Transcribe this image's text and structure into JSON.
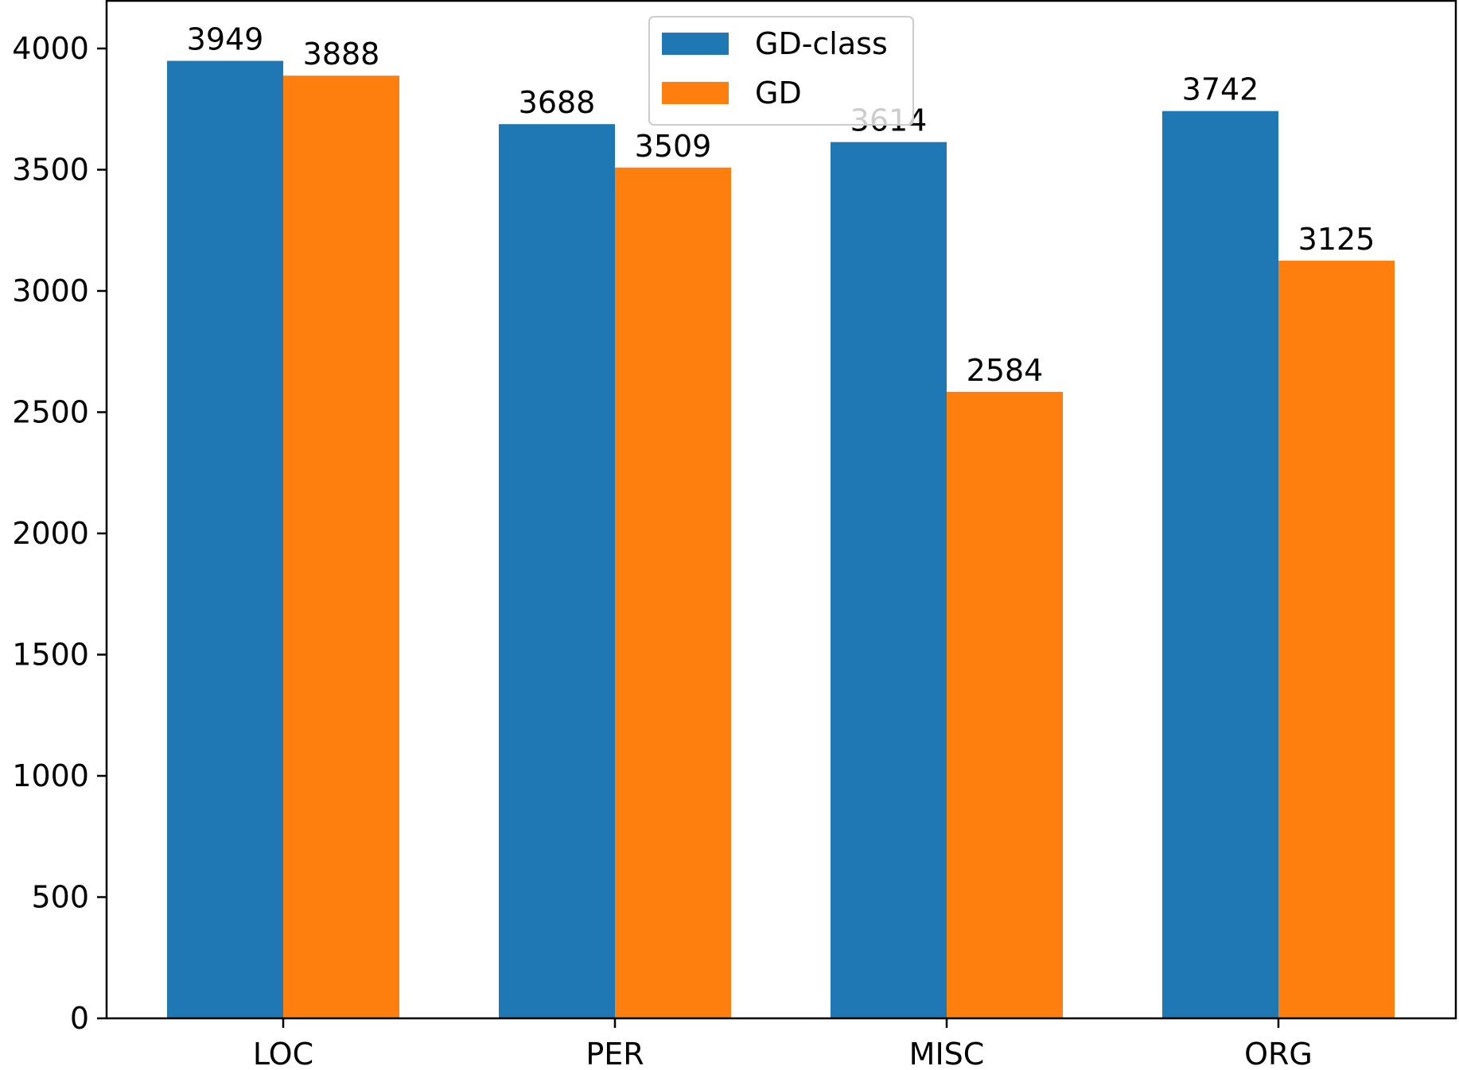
{
  "chart_data": {
    "type": "bar",
    "title": "",
    "xlabel": "",
    "ylabel": "",
    "categories": [
      "LOC",
      "PER",
      "MISC",
      "ORG"
    ],
    "series": [
      {
        "name": "GD-class",
        "values": [
          3949,
          3688,
          3614,
          3742
        ],
        "color": "#1f77b4"
      },
      {
        "name": "GD",
        "values": [
          3888,
          3509,
          2584,
          3125
        ],
        "color": "#ff7f0e"
      }
    ],
    "ylim": [
      0,
      4200
    ],
    "yticks": [
      0,
      500,
      1000,
      1500,
      2000,
      2500,
      3000,
      3500,
      4000
    ],
    "grid": false,
    "legend_position": "top-center",
    "data_labels": true
  }
}
